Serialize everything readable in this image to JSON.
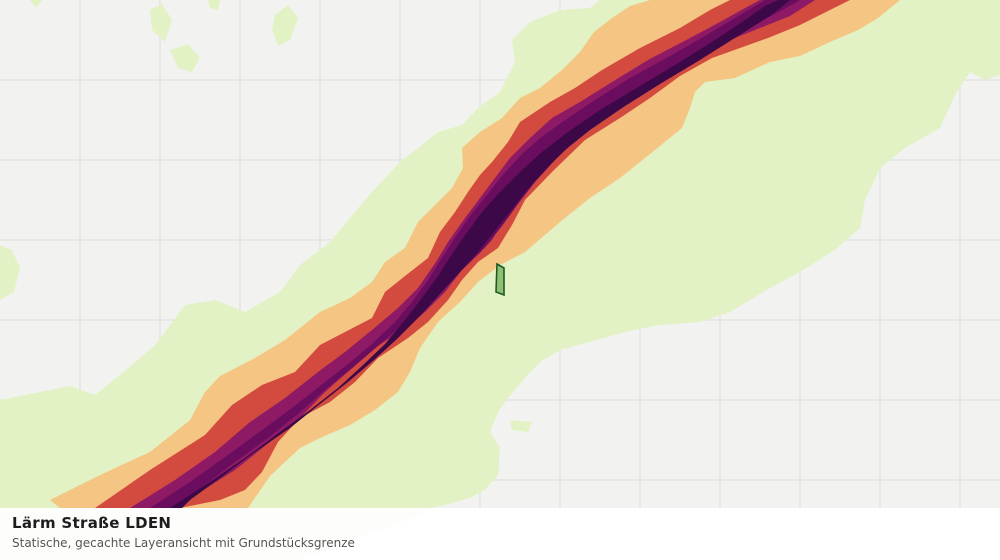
{
  "map": {
    "title": "Lärm Straße LDEN",
    "subtitle": "Statische, gecachte Layeransicht mit Grundstücksgrenze",
    "colors": {
      "background": "#f2f3f1",
      "grid": "#dcdedc",
      "band_lowest": "#e2f2c4",
      "band_low": "#f4c583",
      "band_mid": "#d34b3e",
      "band_high": "#8e1a66",
      "band_higher": "#6a0d5e",
      "band_highest": "#3d0848",
      "parcel_fill": "#8fbf72",
      "parcel_border": "#1f5a22"
    },
    "layers": [
      "Lärm Straße LDEN",
      "Grundstücksgrenze"
    ]
  }
}
